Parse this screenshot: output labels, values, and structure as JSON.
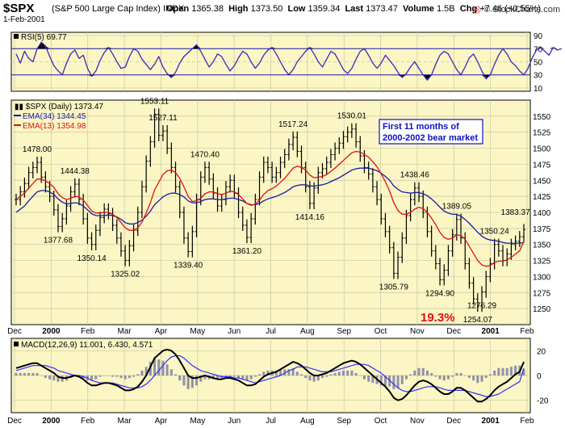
{
  "header": {
    "symbol": "$SPX",
    "description": "(S&P 500 Large Cap Index)",
    "exchange": "INDX",
    "date": "1-Feb-2001",
    "open_label": "Open",
    "open": "1365.38",
    "high_label": "High",
    "high": "1373.50",
    "low_label": "Low",
    "low": "1359.34",
    "last_label": "Last",
    "last": "1373.47",
    "volume_label": "Volume",
    "volume": "1.5B",
    "chg_label": "Chg",
    "chg": "+7.46 (+0.55%)",
    "copyright": "© StockCharts.com",
    "copyright_icon": "bullseye-icon"
  },
  "colors": {
    "panel_bg": "#fbf6c4",
    "grid": "#c8c8a8",
    "price_bar": "#000000",
    "ema34": "#1a1aa6",
    "ema13": "#e01010",
    "rsi_line": "#3a28b8",
    "macd": "#000000",
    "signal": "#3030ff",
    "histogram": "#9090a8",
    "annotation_red": "#e01010",
    "box_text": "#1010c0"
  },
  "chart_data": [
    {
      "type": "line",
      "panel": "rsi",
      "legend": "RSI(5) 69.77",
      "ylim": [
        5,
        95
      ],
      "ticks": [
        10,
        30,
        50,
        70,
        90
      ],
      "overbought": 70,
      "oversold": 30,
      "values": [
        62,
        48,
        66,
        55,
        50,
        70,
        80,
        74,
        58,
        44,
        36,
        30,
        48,
        62,
        68,
        55,
        60,
        40,
        28,
        36,
        52,
        64,
        72,
        62,
        50,
        40,
        42,
        58,
        70,
        66,
        54,
        46,
        38,
        46,
        58,
        42,
        32,
        26,
        34,
        48,
        58,
        64,
        70,
        76,
        66,
        54,
        42,
        50,
        62,
        58,
        46,
        36,
        44,
        56,
        66,
        62,
        50,
        40,
        48,
        60,
        68,
        72,
        62,
        50,
        38,
        30,
        38,
        50,
        58,
        66,
        72,
        62,
        50,
        42,
        54,
        66,
        62,
        50,
        38,
        32,
        40,
        54,
        66,
        70,
        60,
        48,
        40,
        48,
        60,
        52,
        44,
        34,
        26,
        32,
        42,
        50,
        40,
        30,
        22,
        30,
        46,
        60,
        66,
        62,
        50,
        38,
        30,
        42,
        56,
        62,
        50,
        36,
        24,
        30,
        46,
        60,
        70,
        62,
        50,
        44,
        36,
        30,
        40,
        56,
        68,
        72,
        66,
        60,
        72,
        68,
        70
      ]
    },
    {
      "type": "line",
      "panel": "price",
      "legend": "$SPX (Daily) 1373.47",
      "ylim": [
        1225,
        1575
      ],
      "ticks": [
        1250,
        1275,
        1300,
        1325,
        1350,
        1375,
        1400,
        1425,
        1450,
        1475,
        1500,
        1525,
        1550
      ],
      "x_labels": [
        "Dec",
        "2000",
        "Feb",
        "Mar",
        "Apr",
        "May",
        "Jun",
        "Jul",
        "Aug",
        "Sep",
        "Oct",
        "Nov",
        "Dec",
        "2001",
        "Feb"
      ],
      "series": [
        {
          "name": "$SPX (Daily) 1373.47",
          "style": "ohlc-bars",
          "values": [
            1420,
            1432,
            1445,
            1462,
            1470,
            1478,
            1455,
            1440,
            1425,
            1404,
            1378,
            1390,
            1410,
            1432,
            1444,
            1420,
            1390,
            1360,
            1350,
            1372,
            1392,
            1405,
            1398,
            1380,
            1360,
            1340,
            1325,
            1348,
            1372,
            1400,
            1440,
            1480,
            1510,
            1553,
            1520,
            1527,
            1500,
            1470,
            1440,
            1400,
            1360,
            1339,
            1370,
            1420,
            1455,
            1470,
            1452,
            1430,
            1410,
            1420,
            1440,
            1450,
            1430,
            1400,
            1380,
            1361,
            1390,
            1420,
            1455,
            1478,
            1470,
            1455,
            1462,
            1478,
            1490,
            1506,
            1517,
            1495,
            1470,
            1440,
            1414,
            1438,
            1462,
            1468,
            1478,
            1490,
            1500,
            1508,
            1518,
            1525,
            1530,
            1510,
            1488,
            1470,
            1460,
            1440,
            1420,
            1390,
            1370,
            1345,
            1305,
            1330,
            1360,
            1395,
            1420,
            1438,
            1425,
            1400,
            1370,
            1340,
            1320,
            1295,
            1310,
            1340,
            1365,
            1389,
            1360,
            1320,
            1290,
            1265,
            1254,
            1276,
            1300,
            1320,
            1350,
            1340,
            1325,
            1335,
            1350,
            1355,
            1362,
            1373
          ]
        },
        {
          "name": "EMA(34) 1344.45",
          "values": [
            1400,
            1405,
            1410,
            1418,
            1425,
            1432,
            1434,
            1434,
            1432,
            1428,
            1421,
            1416,
            1413,
            1414,
            1415,
            1414,
            1410,
            1404,
            1398,
            1395,
            1395,
            1395,
            1396,
            1395,
            1393,
            1389,
            1384,
            1382,
            1382,
            1384,
            1388,
            1394,
            1402,
            1412,
            1418,
            1424,
            1428,
            1430,
            1430,
            1428,
            1424,
            1418,
            1415,
            1415,
            1417,
            1420,
            1421,
            1421,
            1420,
            1420,
            1421,
            1422,
            1422,
            1420,
            1418,
            1414,
            1412,
            1412,
            1414,
            1418,
            1421,
            1423,
            1425,
            1428,
            1431,
            1435,
            1440,
            1442,
            1443,
            1443,
            1441,
            1441,
            1442,
            1443,
            1445,
            1448,
            1451,
            1454,
            1458,
            1462,
            1466,
            1468,
            1469,
            1469,
            1469,
            1467,
            1465,
            1461,
            1456,
            1450,
            1441,
            1436,
            1432,
            1431,
            1430,
            1431,
            1431,
            1429,
            1426,
            1421,
            1415,
            1408,
            1402,
            1399,
            1397,
            1397,
            1394,
            1389,
            1383,
            1376,
            1369,
            1363,
            1359,
            1357,
            1356,
            1355,
            1353,
            1352,
            1352,
            1352,
            1352,
            1353
          ]
        },
        {
          "name": "EMA(13) 1354.98",
          "values": [
            1420,
            1425,
            1430,
            1438,
            1445,
            1452,
            1452,
            1449,
            1445,
            1439,
            1429,
            1423,
            1420,
            1422,
            1425,
            1424,
            1419,
            1411,
            1402,
            1399,
            1399,
            1400,
            1400,
            1397,
            1392,
            1384,
            1376,
            1372,
            1372,
            1376,
            1385,
            1399,
            1415,
            1435,
            1447,
            1459,
            1465,
            1466,
            1462,
            1453,
            1440,
            1425,
            1417,
            1418,
            1422,
            1429,
            1432,
            1432,
            1429,
            1428,
            1430,
            1433,
            1432,
            1428,
            1421,
            1414,
            1411,
            1413,
            1419,
            1428,
            1434,
            1437,
            1441,
            1447,
            1453,
            1461,
            1469,
            1472,
            1470,
            1466,
            1458,
            1454,
            1455,
            1456,
            1459,
            1464,
            1469,
            1475,
            1481,
            1487,
            1493,
            1495,
            1494,
            1490,
            1486,
            1479,
            1471,
            1460,
            1448,
            1433,
            1415,
            1403,
            1397,
            1397,
            1400,
            1405,
            1408,
            1406,
            1400,
            1391,
            1381,
            1369,
            1361,
            1358,
            1360,
            1365,
            1364,
            1358,
            1347,
            1336,
            1325,
            1318,
            1316,
            1317,
            1322,
            1324,
            1324,
            1326,
            1330,
            1335,
            1340,
            1355
          ]
        }
      ],
      "annotations": [
        {
          "text": "1478.00",
          "x": 5,
          "y": 1478,
          "pos": "above"
        },
        {
          "text": "1377.68",
          "x": 10,
          "y": 1378,
          "pos": "below"
        },
        {
          "text": "1444.38",
          "x": 14,
          "y": 1444,
          "pos": "above"
        },
        {
          "text": "1350.14",
          "x": 18,
          "y": 1350,
          "pos": "below"
        },
        {
          "text": "1325.02",
          "x": 26,
          "y": 1325,
          "pos": "below"
        },
        {
          "text": "1553.11",
          "x": 33,
          "y": 1553,
          "pos": "above"
        },
        {
          "text": "1527.11",
          "x": 35,
          "y": 1527,
          "pos": "above"
        },
        {
          "text": "1339.40",
          "x": 41,
          "y": 1339,
          "pos": "below"
        },
        {
          "text": "1470.40",
          "x": 45,
          "y": 1470,
          "pos": "above"
        },
        {
          "text": "1361.20",
          "x": 55,
          "y": 1361,
          "pos": "below"
        },
        {
          "text": "1517.24",
          "x": 66,
          "y": 1517,
          "pos": "above"
        },
        {
          "text": "1414.16",
          "x": 70,
          "y": 1414,
          "pos": "below"
        },
        {
          "text": "1530.01",
          "x": 80,
          "y": 1530,
          "pos": "above"
        },
        {
          "text": "1305.79",
          "x": 90,
          "y": 1305,
          "pos": "below"
        },
        {
          "text": "1438.46",
          "x": 95,
          "y": 1438,
          "pos": "above"
        },
        {
          "text": "1294.90",
          "x": 101,
          "y": 1295,
          "pos": "below"
        },
        {
          "text": "1389.05",
          "x": 105,
          "y": 1389,
          "pos": "above"
        },
        {
          "text": "1254.07",
          "x": 110,
          "y": 1254,
          "pos": "below"
        },
        {
          "text": "1276.29",
          "x": 111,
          "y": 1276,
          "pos": "below"
        },
        {
          "text": "1350.24",
          "x": 114,
          "y": 1350,
          "pos": "above"
        },
        {
          "text": "1383.37",
          "x": 119,
          "y": 1380,
          "pos": "above"
        }
      ],
      "note_box": [
        "First 11 months of",
        "2000-2002 bear market"
      ],
      "highlight": "19.3%"
    },
    {
      "type": "line",
      "panel": "macd",
      "legend": "MACD(12,26,9) 11.001, 6.430, 4.571",
      "ylim": [
        -30,
        30
      ],
      "ticks": [
        -20,
        0,
        20
      ],
      "x_labels": [
        "Dec",
        "2000",
        "Feb",
        "Mar",
        "Apr",
        "May",
        "Jun",
        "Jul",
        "Aug",
        "Sep",
        "Oct",
        "Nov",
        "Dec",
        "2001",
        "Feb"
      ],
      "series": [
        {
          "name": "MACD",
          "values": [
            6,
            7,
            8,
            9,
            10,
            10,
            8,
            6,
            4,
            2,
            -1,
            -2,
            -2,
            -1,
            0,
            -1,
            -3,
            -6,
            -8,
            -8,
            -7,
            -6,
            -6,
            -7,
            -8,
            -10,
            -12,
            -12,
            -11,
            -9,
            -5,
            0,
            7,
            14,
            17,
            20,
            21,
            20,
            17,
            12,
            6,
            0,
            -2,
            -2,
            -1,
            0,
            -1,
            -2,
            -3,
            -3,
            -2,
            -2,
            -3,
            -4,
            -6,
            -8,
            -8,
            -7,
            -4,
            -1,
            1,
            2,
            3,
            5,
            7,
            9,
            11,
            10,
            8,
            5,
            2,
            0,
            0,
            1,
            2,
            4,
            6,
            8,
            10,
            11,
            12,
            11,
            9,
            6,
            3,
            0,
            -3,
            -6,
            -9,
            -13,
            -18,
            -20,
            -19,
            -16,
            -12,
            -8,
            -5,
            -4,
            -5,
            -7,
            -10,
            -13,
            -15,
            -15,
            -13,
            -10,
            -10,
            -12,
            -15,
            -18,
            -21,
            -21,
            -19,
            -16,
            -12,
            -9,
            -7,
            -5,
            -2,
            1,
            3,
            11
          ]
        },
        {
          "name": "Signal",
          "values": [
            4,
            5,
            6,
            7,
            8,
            8,
            8,
            8,
            7,
            6,
            4,
            3,
            2,
            1,
            0,
            0,
            -1,
            -2,
            -4,
            -5,
            -6,
            -6,
            -6,
            -6,
            -7,
            -8,
            -9,
            -10,
            -10,
            -10,
            -9,
            -7,
            -4,
            0,
            4,
            8,
            12,
            15,
            16,
            16,
            14,
            11,
            8,
            6,
            4,
            3,
            2,
            1,
            0,
            -1,
            -1,
            -1,
            -2,
            -2,
            -3,
            -4,
            -5,
            -6,
            -5,
            -4,
            -3,
            -2,
            -1,
            0,
            2,
            4,
            5,
            7,
            7,
            7,
            6,
            5,
            4,
            3,
            3,
            3,
            4,
            5,
            6,
            7,
            8,
            9,
            9,
            9,
            8,
            6,
            4,
            2,
            -1,
            -4,
            -7,
            -10,
            -12,
            -13,
            -13,
            -12,
            -11,
            -10,
            -9,
            -9,
            -9,
            -10,
            -11,
            -12,
            -12,
            -12,
            -12,
            -12,
            -13,
            -14,
            -15,
            -16,
            -17,
            -17,
            -16,
            -15,
            -13,
            -11,
            -9,
            -7,
            -5,
            6
          ]
        }
      ]
    }
  ]
}
